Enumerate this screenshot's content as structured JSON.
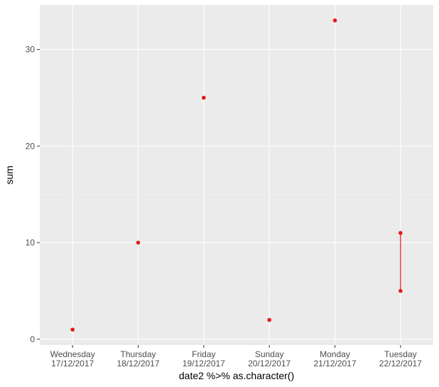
{
  "colors": {
    "panel_background": "#ebebeb",
    "grid_major": "#ffffff",
    "grid_minor": "#f5f5f5",
    "point": "#e31a1c",
    "tick_text": "#4d4d4d",
    "title_text": "#000000"
  },
  "chart_data": {
    "type": "scatter",
    "xlabel": "date2 %>% as.character()",
    "ylabel": "sum",
    "categories": [
      {
        "line1": "Wednesday",
        "line2": "17/12/2017"
      },
      {
        "line1": "Thursday",
        "line2": "18/12/2017"
      },
      {
        "line1": "Friday",
        "line2": "19/12/2017"
      },
      {
        "line1": "Sunday",
        "line2": "20/12/2017"
      },
      {
        "line1": "Monday",
        "line2": "21/12/2017"
      },
      {
        "line1": "Tuesday",
        "line2": "22/12/2017"
      }
    ],
    "points": [
      {
        "category": 0,
        "y": 1
      },
      {
        "category": 1,
        "y": 10
      },
      {
        "category": 2,
        "y": 25
      },
      {
        "category": 3,
        "y": 2
      },
      {
        "category": 4,
        "y": 33
      },
      {
        "category": 5,
        "y": 11
      },
      {
        "category": 5,
        "y": 5
      }
    ],
    "segments": [
      {
        "category": 5,
        "y_from": 5,
        "y_to": 11
      }
    ],
    "yticks": [
      0,
      10,
      20,
      30
    ],
    "ylim": [
      -0.6,
      34.6
    ],
    "grid": true,
    "legend": "none"
  }
}
